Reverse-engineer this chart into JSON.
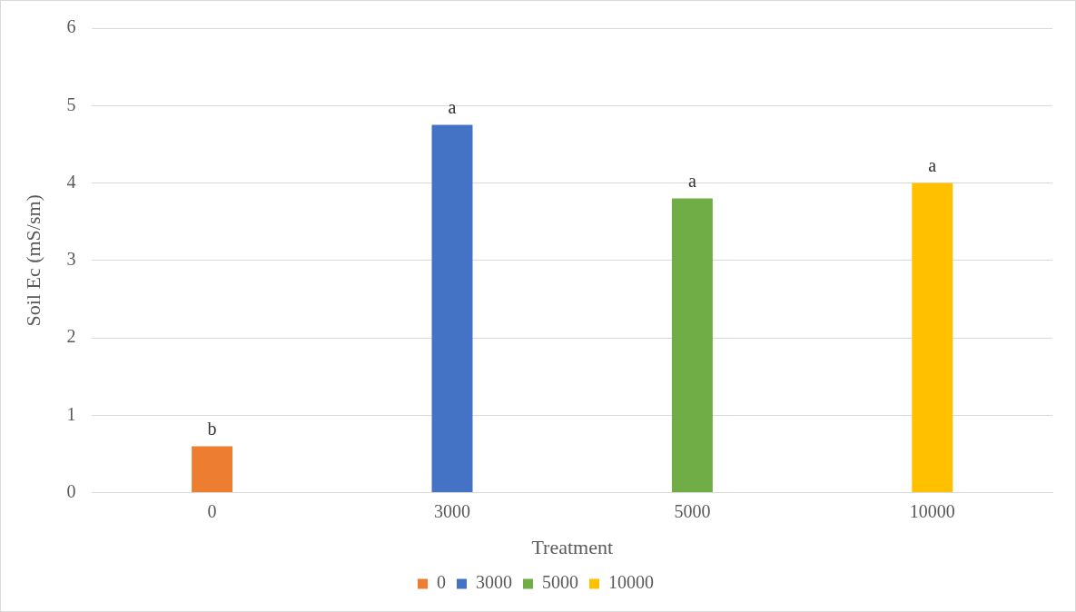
{
  "chart_data": {
    "type": "bar",
    "xlabel": "Treatment",
    "ylabel": "Soil Ec (mS/sm)",
    "categories": [
      "0",
      "3000",
      "5000",
      "10000"
    ],
    "series": [
      {
        "name": "0",
        "color": "#ed7d31",
        "values": [
          0.6,
          null,
          null,
          null
        ]
      },
      {
        "name": "3000",
        "color": "#4472c4",
        "values": [
          null,
          4.75,
          null,
          null
        ]
      },
      {
        "name": "5000",
        "color": "#70ad47",
        "values": [
          null,
          null,
          3.8,
          null
        ]
      },
      {
        "name": "10000",
        "color": "#ffc000",
        "values": [
          null,
          null,
          null,
          4.0
        ]
      }
    ],
    "ylim": [
      0,
      6
    ],
    "yticks": [
      0,
      1,
      2,
      3,
      4,
      5,
      6
    ],
    "grid": "y",
    "legend": "bottom",
    "annotations": [
      {
        "text": "b",
        "x": "0",
        "y": 0.6
      },
      {
        "text": "a",
        "x": "3000",
        "y": 4.75
      },
      {
        "text": "a",
        "x": "5000",
        "y": 3.8
      },
      {
        "text": "a",
        "x": "10000",
        "y": 4.0
      }
    ]
  }
}
